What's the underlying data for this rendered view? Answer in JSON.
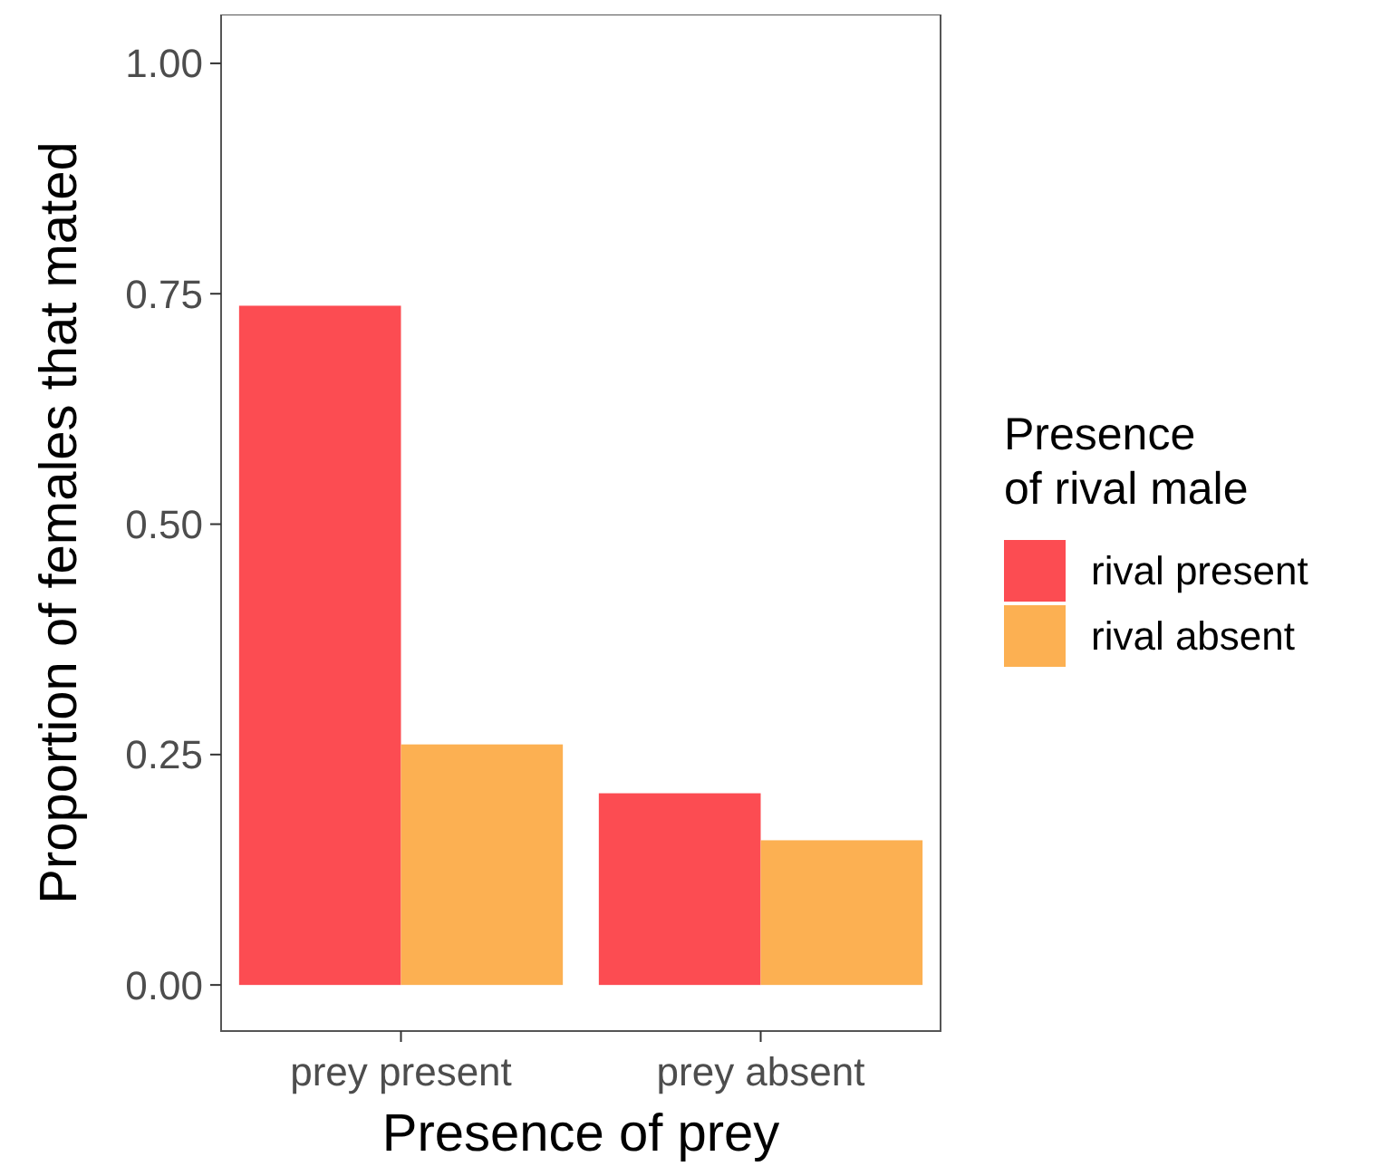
{
  "chart_data": {
    "type": "bar",
    "xlabel": "Presence of prey",
    "ylabel": "Proportion of females that mated",
    "legend_title": "Presence\nof rival male",
    "categories": [
      "prey present",
      "prey absent"
    ],
    "series": [
      {
        "name": "rival present",
        "color": "#fc4c52",
        "values": [
          0.737,
          0.208
        ]
      },
      {
        "name": "rival absent",
        "color": "#fcb052",
        "values": [
          0.261,
          0.157
        ]
      }
    ],
    "ylim": [
      -0.05,
      1.053
    ],
    "yticks": [
      {
        "value": 0,
        "label": "0.00"
      },
      {
        "value": 0.25,
        "label": "0.25"
      },
      {
        "value": 0.5,
        "label": "0.50"
      },
      {
        "value": 0.75,
        "label": "0.75"
      },
      {
        "value": 1,
        "label": "1.00"
      }
    ],
    "grid": false,
    "legend": "right"
  }
}
